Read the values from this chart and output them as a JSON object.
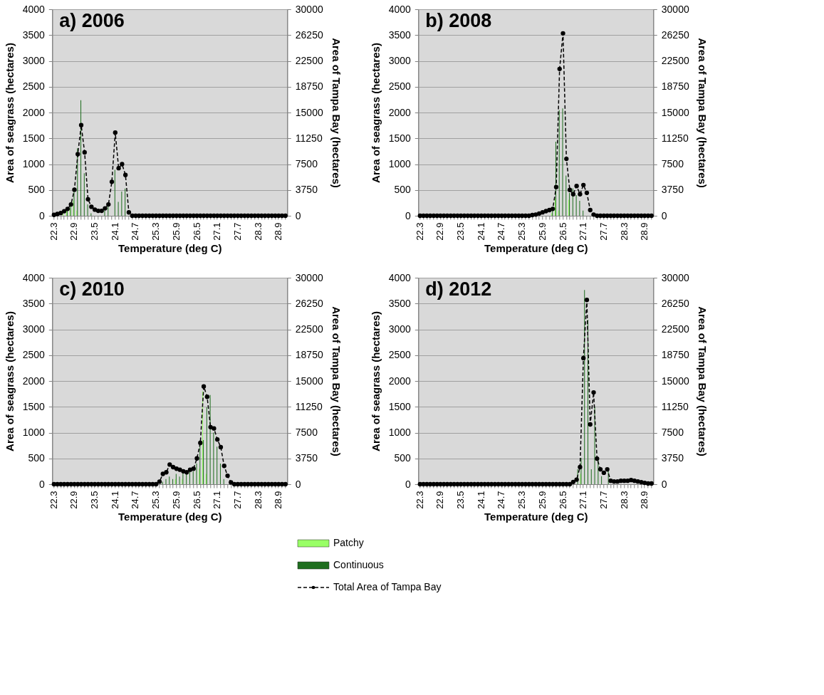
{
  "chart_data": [
    {
      "type": "bar",
      "title": "a) 2006",
      "xlabel": "Temperature (deg C)",
      "ylabel": "Area of seagrass (hectares)",
      "y2label": "Area of Tampa Bay  (hectares)",
      "categories": [
        "22.3",
        null,
        null,
        null,
        null,
        null,
        "22.9",
        null,
        null,
        null,
        null,
        null,
        "23.5",
        null,
        null,
        null,
        null,
        null,
        "24.1",
        null,
        null,
        null,
        null,
        null,
        "24.7",
        null,
        null,
        null,
        null,
        null,
        "25.3",
        null,
        null,
        null,
        null,
        null,
        "25.9",
        null,
        null,
        null,
        null,
        null,
        "26.5",
        null,
        null,
        null,
        null,
        null,
        "27.1",
        null,
        null,
        null,
        null,
        null,
        "27.7",
        null,
        null,
        null,
        null,
        null,
        "28.3",
        null,
        null,
        null,
        null,
        null,
        "28.9",
        null,
        null
      ],
      "ylim": [
        0,
        4000
      ],
      "yticks": [
        0,
        500,
        1000,
        1500,
        2000,
        2500,
        3000,
        3500,
        4000
      ],
      "y2lim": [
        0,
        30000
      ],
      "y2ticks": [
        0,
        3750,
        7500,
        11250,
        15000,
        18750,
        22500,
        26250,
        30000
      ],
      "grid": "y",
      "series": [
        {
          "color": "#99ff66",
          "values": [
            0,
            0,
            0,
            50,
            100,
            150,
            300,
            100,
            0,
            0,
            0,
            0,
            0,
            0,
            0,
            0,
            0,
            0,
            0,
            0,
            0,
            0,
            0,
            0,
            0,
            0,
            0,
            0,
            0,
            0,
            0,
            0,
            0,
            0,
            0,
            0,
            0,
            0,
            0,
            0,
            0,
            0,
            0,
            0,
            0,
            0,
            0,
            0,
            0,
            0,
            0,
            0,
            0,
            0,
            0,
            0,
            0,
            0,
            0,
            0,
            0,
            0,
            0,
            0,
            0,
            0,
            0,
            0,
            0
          ]
        },
        {
          "color": "#1f6e1f",
          "values": [
            0,
            0,
            0,
            0,
            100,
            200,
            504,
            1307,
            2237,
            825,
            220,
            50,
            0,
            0,
            0,
            100,
            230,
            0,
            890,
            270,
            470,
            526,
            0,
            0,
            0,
            0,
            0,
            0,
            0,
            0,
            0,
            0,
            0,
            0,
            0,
            0,
            0,
            0,
            0,
            0,
            0,
            0,
            0,
            0,
            0,
            0,
            0,
            0,
            0,
            0,
            0,
            0,
            0,
            0,
            0,
            0,
            0,
            0,
            0,
            0,
            0,
            0,
            0,
            0,
            0,
            0,
            0,
            0,
            0
          ]
        },
        {
          "type": "line",
          "axis": "y2",
          "color": "#000000",
          "line_style": "dashed",
          "marker": "circle",
          "values": [
            130,
            260,
            400,
            660,
            1000,
            1650,
            3780,
            8950,
            13160,
            9210,
            2400,
            1300,
            890,
            720,
            720,
            1080,
            1650,
            4930,
            12080,
            6910,
            7500,
            5920,
            490,
            0,
            0,
            0,
            0,
            0,
            0,
            0,
            0,
            0,
            0,
            0,
            0,
            0,
            0,
            0,
            0,
            0,
            0,
            0,
            0,
            0,
            0,
            0,
            0,
            0,
            0,
            0,
            0,
            0,
            0,
            0,
            0,
            0,
            0,
            0,
            0,
            0,
            0,
            0,
            0,
            0,
            0,
            0,
            0,
            0,
            0
          ]
        }
      ]
    },
    {
      "type": "bar",
      "title": "b) 2008",
      "xlabel": "Temperature (deg C)",
      "ylabel": "Area of seagrass (hectares)",
      "y2label": "Area of Tampa Bay  (hectares)",
      "categories": [
        "22.3",
        null,
        null,
        null,
        null,
        null,
        "22.9",
        null,
        null,
        null,
        null,
        null,
        "23.5",
        null,
        null,
        null,
        null,
        null,
        "24.1",
        null,
        null,
        null,
        null,
        null,
        "24.7",
        null,
        null,
        null,
        null,
        null,
        "25.3",
        null,
        null,
        null,
        null,
        null,
        "25.9",
        null,
        null,
        null,
        null,
        null,
        "26.5",
        null,
        null,
        null,
        null,
        null,
        "27.1",
        null,
        null,
        null,
        null,
        null,
        "27.7",
        null,
        null,
        null,
        null,
        null,
        "28.3",
        null,
        null,
        null,
        null,
        null,
        "28.9",
        null,
        null
      ],
      "ylim": [
        0,
        4000
      ],
      "yticks": [
        0,
        500,
        1000,
        1500,
        2000,
        2500,
        3000,
        3500,
        4000
      ],
      "y2lim": [
        0,
        30000
      ],
      "y2ticks": [
        0,
        3750,
        7500,
        11250,
        15000,
        18750,
        22500,
        26250,
        30000
      ],
      "grid": "y",
      "series": [
        {
          "color": "#99ff66",
          "values": [
            0,
            0,
            0,
            0,
            0,
            0,
            0,
            0,
            0,
            0,
            0,
            0,
            0,
            0,
            0,
            0,
            0,
            0,
            0,
            0,
            0,
            0,
            0,
            0,
            0,
            0,
            0,
            0,
            0,
            0,
            0,
            0,
            0,
            0,
            0,
            0,
            0,
            0,
            0,
            50,
            333,
            100,
            0,
            0,
            311,
            0,
            null,
            0,
            0,
            0,
            0,
            0,
            0,
            0,
            0,
            0,
            0,
            0,
            0,
            0,
            0,
            0,
            0,
            0,
            0,
            0,
            0,
            0,
            0
          ]
        },
        {
          "color": "#1f6e1f",
          "values": [
            0,
            0,
            0,
            0,
            0,
            0,
            0,
            0,
            0,
            0,
            0,
            0,
            0,
            0,
            0,
            0,
            0,
            0,
            0,
            0,
            0,
            0,
            0,
            0,
            0,
            0,
            0,
            0,
            0,
            0,
            0,
            0,
            0,
            0,
            0,
            0,
            0,
            0,
            0,
            100,
            1436,
            2044,
            2080,
            780,
            440,
            530,
            400,
            290,
            100,
            0,
            0,
            0,
            0,
            0,
            0,
            0,
            0,
            0,
            0,
            0,
            0,
            0,
            0,
            0,
            0,
            0,
            0,
            0,
            0
          ]
        },
        {
          "type": "line",
          "axis": "y2",
          "color": "#000000",
          "line_style": "dashed",
          "marker": "circle",
          "values": [
            0,
            0,
            0,
            0,
            0,
            0,
            0,
            0,
            0,
            0,
            0,
            0,
            0,
            0,
            0,
            0,
            0,
            0,
            0,
            0,
            0,
            0,
            0,
            0,
            0,
            0,
            0,
            0,
            0,
            0,
            0,
            0,
            0,
            100,
            170,
            330,
            500,
            670,
            830,
            1000,
            4170,
            21330,
            26500,
            8270,
            3750,
            3130,
            4330,
            3130,
            4470,
            3330,
            830,
            170,
            0,
            0,
            0,
            0,
            0,
            0,
            0,
            0,
            0,
            0,
            0,
            0,
            0,
            0,
            0,
            0,
            0
          ]
        }
      ]
    },
    {
      "type": "bar",
      "title": "c) 2010",
      "xlabel": "Temperature (deg C)",
      "ylabel": "Area of seagrass (hectares)",
      "y2label": "Area of Tampa Bay  (hectares)",
      "categories": [
        "22.3",
        null,
        null,
        null,
        null,
        null,
        "22.9",
        null,
        null,
        null,
        null,
        null,
        "23.5",
        null,
        null,
        null,
        null,
        null,
        "24.1",
        null,
        null,
        null,
        null,
        null,
        "24.7",
        null,
        null,
        null,
        null,
        null,
        "25.3",
        null,
        null,
        null,
        null,
        null,
        "25.9",
        null,
        null,
        null,
        null,
        null,
        "26.5",
        null,
        null,
        null,
        null,
        null,
        "27.1",
        null,
        null,
        null,
        null,
        null,
        "27.7",
        null,
        null,
        null,
        null,
        null,
        "28.3",
        null,
        null,
        null,
        null,
        null,
        "28.9",
        null,
        null
      ],
      "ylim": [
        0,
        4000
      ],
      "yticks": [
        0,
        500,
        1000,
        1500,
        2000,
        2500,
        3000,
        3500,
        4000
      ],
      "y2lim": [
        0,
        30000
      ],
      "y2ticks": [
        0,
        3750,
        7500,
        11250,
        15000,
        18750,
        22500,
        26250,
        30000
      ],
      "grid": "y",
      "series": [
        {
          "color": "#99ff66",
          "values": [
            0,
            0,
            0,
            0,
            0,
            0,
            0,
            0,
            0,
            0,
            0,
            0,
            0,
            0,
            0,
            0,
            0,
            0,
            0,
            0,
            0,
            0,
            0,
            0,
            0,
            0,
            0,
            0,
            0,
            0,
            0,
            0,
            0,
            0,
            0,
            0,
            100,
            0,
            100,
            0,
            0,
            0,
            0,
            300,
            1800,
            200,
            0,
            0,
            0,
            0,
            0,
            0,
            0,
            0,
            0,
            0,
            0,
            0,
            0,
            0,
            0,
            0,
            0,
            0,
            0,
            0,
            0,
            0,
            0
          ]
        },
        {
          "color": "#1f6e1f",
          "values": [
            0,
            0,
            0,
            0,
            0,
            0,
            0,
            0,
            0,
            0,
            0,
            0,
            0,
            0,
            0,
            0,
            0,
            0,
            0,
            0,
            0,
            0,
            0,
            0,
            0,
            0,
            0,
            0,
            0,
            0,
            0,
            0,
            50,
            100,
            150,
            100,
            200,
            150,
            250,
            200,
            300,
            250,
            400,
            850,
            855,
            1490,
            1727,
            1000,
            727,
            400,
            100,
            0,
            0,
            0,
            0,
            0,
            0,
            0,
            0,
            0,
            0,
            0,
            0,
            0,
            0,
            0,
            0,
            0,
            0
          ]
        },
        {
          "type": "line",
          "axis": "y2",
          "color": "#000000",
          "line_style": "dashed",
          "marker": "circle",
          "values": [
            0,
            0,
            0,
            0,
            0,
            0,
            0,
            0,
            0,
            0,
            0,
            0,
            0,
            0,
            0,
            0,
            0,
            0,
            0,
            0,
            0,
            0,
            0,
            0,
            0,
            0,
            0,
            0,
            0,
            0,
            0,
            375,
            1500,
            1730,
            2850,
            2480,
            2250,
            2100,
            1880,
            1730,
            2100,
            2250,
            3750,
            6000,
            14200,
            12700,
            8290,
            8100,
            6500,
            5390,
            2660,
            1230,
            270,
            0,
            0,
            0,
            0,
            0,
            0,
            0,
            0,
            0,
            0,
            0,
            0,
            0,
            0,
            0,
            0
          ]
        }
      ]
    },
    {
      "type": "bar",
      "title": "d) 2012",
      "xlabel": "Temperature (deg C)",
      "ylabel": "Area of seagrass (hectares)",
      "y2label": "Area of Tampa Bay  (hectares)",
      "legend": "bottom",
      "categories": [
        "22.3",
        null,
        null,
        null,
        null,
        null,
        "22.9",
        null,
        null,
        null,
        null,
        null,
        "23.5",
        null,
        null,
        null,
        null,
        null,
        "24.1",
        null,
        null,
        null,
        null,
        null,
        "24.7",
        null,
        null,
        null,
        null,
        null,
        "25.3",
        null,
        null,
        null,
        null,
        null,
        "25.9",
        null,
        null,
        null,
        null,
        null,
        "26.5",
        null,
        null,
        null,
        null,
        null,
        "27.1",
        null,
        null,
        null,
        null,
        null,
        "27.7",
        null,
        null,
        null,
        null,
        null,
        "28.3",
        null,
        null,
        null,
        null,
        null,
        "28.9",
        null,
        null
      ],
      "ylim": [
        0,
        4000
      ],
      "yticks": [
        0,
        500,
        1000,
        1500,
        2000,
        2500,
        3000,
        3500,
        4000
      ],
      "y2lim": [
        0,
        30000
      ],
      "y2ticks": [
        0,
        3750,
        7500,
        11250,
        15000,
        18750,
        22500,
        26250,
        30000
      ],
      "grid": "y",
      "series": [
        {
          "name": "Patchy",
          "color": "#99ff66",
          "values": [
            0,
            0,
            0,
            0,
            0,
            0,
            0,
            0,
            0,
            0,
            0,
            0,
            0,
            0,
            0,
            0,
            0,
            0,
            0,
            0,
            0,
            0,
            0,
            0,
            0,
            0,
            0,
            0,
            0,
            0,
            0,
            0,
            0,
            0,
            0,
            0,
            0,
            0,
            0,
            0,
            0,
            0,
            0,
            0,
            0,
            0,
            null,
            200,
            0,
            0,
            0,
            0,
            0,
            0,
            0,
            0,
            0,
            0,
            0,
            0,
            0,
            0,
            0,
            0,
            0,
            0,
            0,
            0,
            0
          ]
        },
        {
          "name": "Continuous",
          "color": "#1f6e1f",
          "values": [
            0,
            0,
            0,
            0,
            0,
            0,
            0,
            0,
            0,
            0,
            0,
            0,
            0,
            0,
            0,
            0,
            0,
            0,
            0,
            0,
            0,
            0,
            0,
            0,
            0,
            0,
            0,
            0,
            0,
            0,
            0,
            0,
            0,
            0,
            0,
            0,
            0,
            0,
            0,
            0,
            0,
            0,
            0,
            0,
            0,
            0,
            288,
            509,
            3761,
            3186,
            288,
            1504,
            487,
            155,
            0,
            288,
            0,
            0,
            0,
            0,
            0,
            0,
            0,
            0,
            0,
            0,
            0,
            0,
            0
          ]
        },
        {
          "name": "Total Area of Tampa Bay",
          "type": "line",
          "axis": "y2",
          "color": "#000000",
          "line_style": "dashed",
          "marker": "circle",
          "values": [
            0,
            0,
            0,
            0,
            0,
            0,
            0,
            0,
            0,
            0,
            0,
            0,
            0,
            0,
            0,
            0,
            0,
            0,
            0,
            0,
            0,
            0,
            0,
            0,
            0,
            0,
            0,
            0,
            0,
            0,
            0,
            0,
            0,
            0,
            0,
            0,
            0,
            0,
            0,
            0,
            0,
            0,
            0,
            0,
            0,
            330,
            660,
            2490,
            18320,
            26780,
            8690,
            13340,
            3720,
            2160,
            1660,
            2160,
            500,
            400,
            400,
            500,
            500,
            500,
            600,
            500,
            400,
            300,
            200,
            100,
            100
          ]
        }
      ]
    }
  ]
}
